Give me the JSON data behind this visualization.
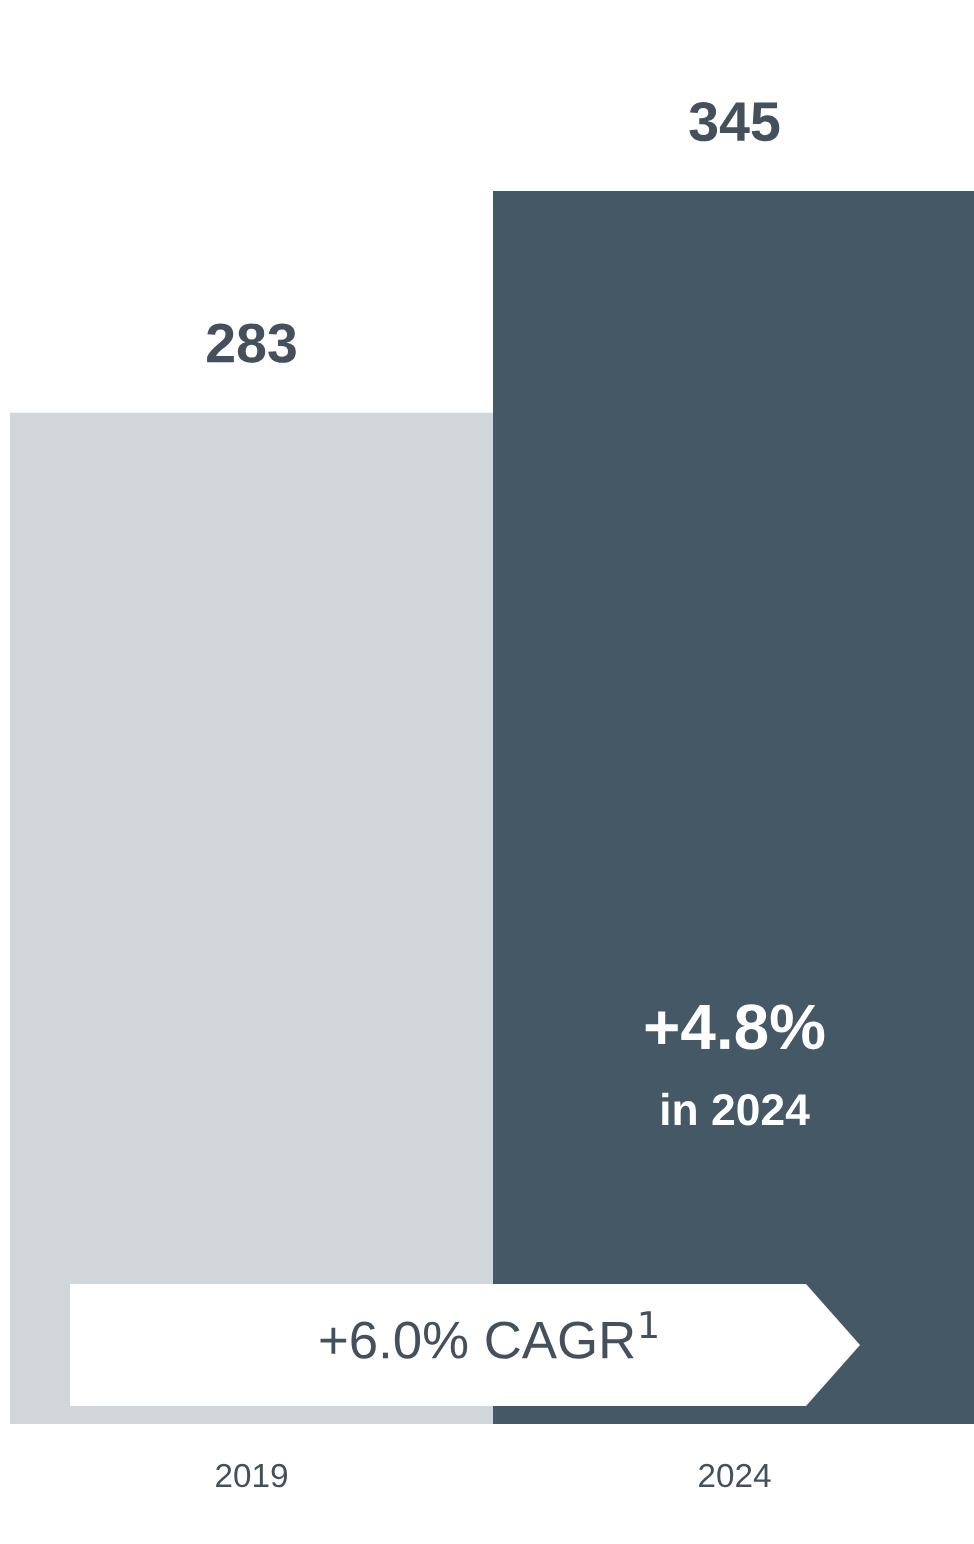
{
  "chart_data": {
    "type": "bar",
    "categories": [
      "2019",
      "2024"
    ],
    "values": [
      283,
      345
    ],
    "colors": [
      "#d0d6d9",
      "#455866"
    ],
    "data_labels": true,
    "grid": false,
    "legend": false,
    "annotations": [
      "+4.8%",
      "in 2024",
      "+6.0% CAGR$^{1}$"
    ]
  }
}
